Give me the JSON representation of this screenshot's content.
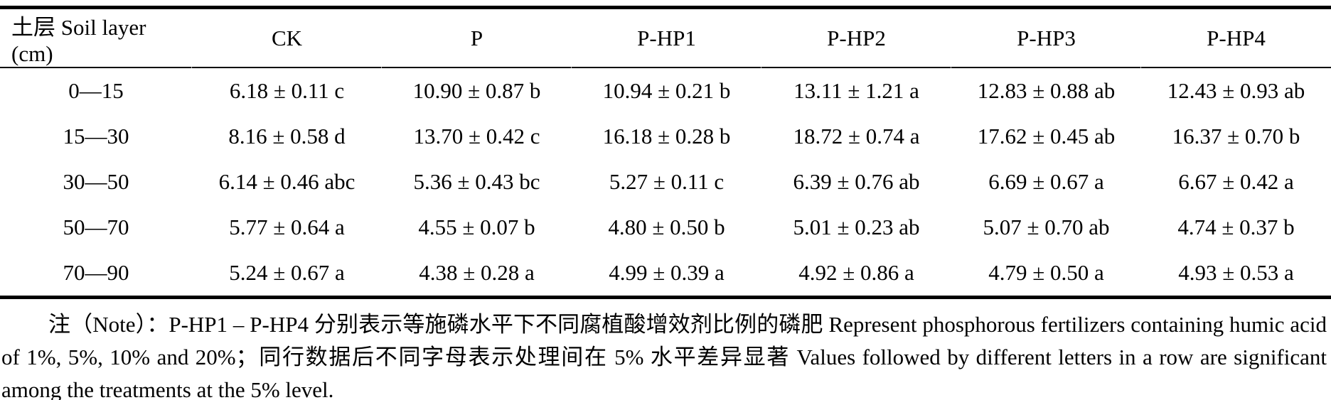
{
  "table": {
    "columns": [
      "土层 Soil layer (cm)",
      "CK",
      "P",
      "P-HP1",
      "P-HP2",
      "P-HP3",
      "P-HP4"
    ],
    "rows": [
      {
        "layer": "0—15",
        "values": [
          "6.18 ± 0.11 c",
          "10.90 ± 0.87 b",
          "10.94 ± 0.21 b",
          "13.11 ± 1.21 a",
          "12.83 ± 0.88 ab",
          "12.43 ± 0.93 ab"
        ]
      },
      {
        "layer": "15—30",
        "values": [
          "8.16 ± 0.58 d",
          "13.70 ± 0.42 c",
          "16.18 ± 0.28 b",
          "18.72 ± 0.74 a",
          "17.62 ± 0.45 ab",
          "16.37 ± 0.70 b"
        ]
      },
      {
        "layer": "30—50",
        "values": [
          "6.14 ± 0.46 abc",
          "5.36 ± 0.43 bc",
          "5.27 ± 0.11 c",
          "6.39 ± 0.76 ab",
          "6.69 ± 0.67 a",
          "6.67 ± 0.42 a"
        ]
      },
      {
        "layer": "50—70",
        "values": [
          "5.77 ± 0.64 a",
          "4.55 ± 0.07 b",
          "4.80 ± 0.50 b",
          "5.01 ± 0.23 ab",
          "5.07 ± 0.70 ab",
          "4.74 ± 0.37 b"
        ]
      },
      {
        "layer": "70—90",
        "values": [
          "5.24 ± 0.67 a",
          "4.38 ± 0.28 a",
          "4.99 ± 0.39 a",
          "4.92 ± 0.86 a",
          "4.79 ± 0.50 a",
          "4.93 ± 0.53 a"
        ]
      }
    ]
  },
  "note": "注（Note）：P-HP1 – P-HP4 分别表示等施磷水平下不同腐植酸增效剂比例的磷肥 Represent phosphorous fertilizers containing humic acid of 1%, 5%, 10% and 20%；同行数据后不同字母表示处理间在 5% 水平差异显著 Values followed by different letters in a row are significant among the treatments at the 5% level."
}
